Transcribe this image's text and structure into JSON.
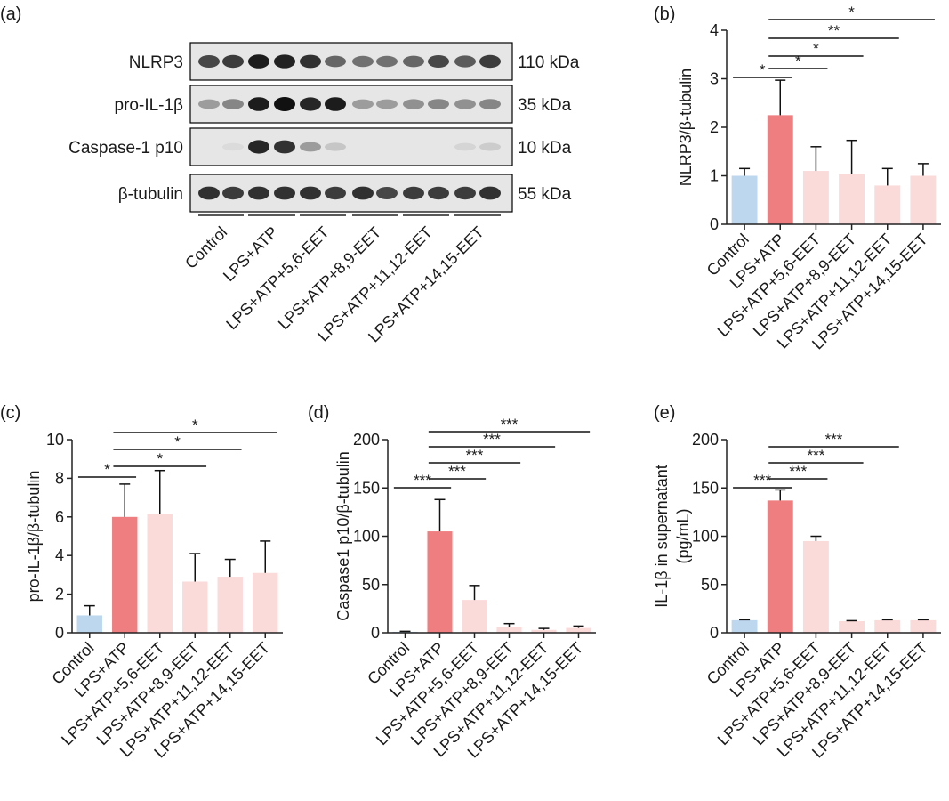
{
  "colors": {
    "control": "#bdd7ee",
    "lps_atp": "#ee7e80",
    "eet": "#fbdada",
    "axis": "#222222",
    "blot_band": "#111111",
    "blot_bg": "#e6e6e6"
  },
  "panel_a": {
    "label": "(a)",
    "rows": [
      {
        "name": "NLRP3",
        "kda": "110 kDa"
      },
      {
        "name": "pro-IL-1β",
        "kda": "35 kDa"
      },
      {
        "name": "Caspase-1 p10",
        "kda": "10 kDa"
      },
      {
        "name": "β-tubulin",
        "kda": "55 kDa"
      }
    ],
    "groups": [
      "Control",
      "LPS+ATP",
      "LPS+ATP+5,6-EET",
      "LPS+ATP+8,9-EET",
      "LPS+ATP+11,12-EET",
      "LPS+ATP+14,15-EET"
    ],
    "band_intensity": [
      [
        0.75,
        0.8,
        0.95,
        0.92,
        0.85,
        0.6,
        0.55,
        0.55,
        0.6,
        0.75,
        0.65,
        0.8
      ],
      [
        0.35,
        0.45,
        0.95,
        1.0,
        0.9,
        0.95,
        0.35,
        0.35,
        0.4,
        0.45,
        0.4,
        0.45
      ],
      [
        0.02,
        0.05,
        0.9,
        0.85,
        0.35,
        0.15,
        0.02,
        0.02,
        0.03,
        0.03,
        0.08,
        0.12
      ],
      [
        0.85,
        0.8,
        0.85,
        0.85,
        0.85,
        0.8,
        0.85,
        0.75,
        0.8,
        0.8,
        0.8,
        0.85
      ]
    ]
  },
  "chart_data": [
    {
      "panel": "(b)",
      "type": "bar",
      "categories": [
        "Control",
        "LPS+ATP",
        "LPS+ATP+5,6-EET",
        "LPS+ATP+8,9-EET",
        "LPS+ATP+11,12-EET",
        "LPS+ATP+14,15-EET"
      ],
      "values": [
        1.0,
        2.25,
        1.1,
        1.03,
        0.8,
        1.0
      ],
      "errors": [
        0.15,
        0.72,
        0.5,
        0.7,
        0.35,
        0.25
      ],
      "ylabel": "NLRP3/β-tubulin",
      "ylim": [
        0,
        4
      ],
      "yticks": [
        0,
        1,
        2,
        3,
        4
      ],
      "significance": [
        {
          "from": 0,
          "to": 1,
          "label": "*"
        },
        {
          "from": 1,
          "to": 2,
          "label": "*"
        },
        {
          "from": 1,
          "to": 3,
          "label": "*"
        },
        {
          "from": 1,
          "to": 4,
          "label": "**"
        },
        {
          "from": 1,
          "to": 5,
          "label": "*"
        }
      ]
    },
    {
      "panel": "(c)",
      "type": "bar",
      "categories": [
        "Control",
        "LPS+ATP",
        "LPS+ATP+5,6-EET",
        "LPS+ATP+8,9-EET",
        "LPS+ATP+11,12-EET",
        "LPS+ATP+14,15-EET"
      ],
      "values": [
        0.9,
        6.0,
        6.15,
        2.65,
        2.9,
        3.1
      ],
      "errors": [
        0.5,
        1.7,
        2.25,
        1.45,
        0.9,
        1.65
      ],
      "ylabel": "pro-IL-1β/β-tubulin",
      "ylim": [
        0,
        10
      ],
      "yticks": [
        0,
        2,
        4,
        6,
        8,
        10
      ],
      "significance": [
        {
          "from": 0,
          "to": 1,
          "label": "*"
        },
        {
          "from": 1,
          "to": 3,
          "label": "*"
        },
        {
          "from": 1,
          "to": 4,
          "label": "*"
        },
        {
          "from": 1,
          "to": 5,
          "label": "*"
        }
      ]
    },
    {
      "panel": "(d)",
      "type": "bar",
      "categories": [
        "Control",
        "LPS+ATP",
        "LPS+ATP+5,6-EET",
        "LPS+ATP+8,9-EET",
        "LPS+ATP+11,12-EET",
        "LPS+ATP+14,15-EET"
      ],
      "values": [
        1.0,
        105,
        34,
        6,
        3,
        5
      ],
      "errors": [
        0.5,
        33,
        15,
        3.5,
        1.5,
        2
      ],
      "ylabel": "Caspase1 p10/β-tubulin",
      "ylim": [
        0,
        200
      ],
      "yticks": [
        0,
        50,
        100,
        150,
        200
      ],
      "significance": [
        {
          "from": 0,
          "to": 1,
          "label": "***"
        },
        {
          "from": 1,
          "to": 2,
          "label": "***"
        },
        {
          "from": 1,
          "to": 3,
          "label": "***"
        },
        {
          "from": 1,
          "to": 4,
          "label": "***"
        },
        {
          "from": 1,
          "to": 5,
          "label": "***"
        }
      ]
    },
    {
      "panel": "(e)",
      "type": "bar",
      "categories": [
        "Control",
        "LPS+ATP",
        "LPS+ATP+5,6-EET",
        "LPS+ATP+8,9-EET",
        "LPS+ATP+11,12-EET",
        "LPS+ATP+14,15-EET"
      ],
      "values": [
        13,
        137,
        95,
        12,
        13,
        13
      ],
      "errors": [
        0.5,
        11,
        5,
        0.5,
        0.5,
        0.5
      ],
      "ylabel": "IL-1β in supernatant",
      "ylabel2": "(pg/mL)",
      "ylim": [
        0,
        200
      ],
      "yticks": [
        0,
        50,
        100,
        150,
        200
      ],
      "significance": [
        {
          "from": 0,
          "to": 1,
          "label": "***"
        },
        {
          "from": 1,
          "to": 2,
          "label": "***"
        },
        {
          "from": 1,
          "to": 3,
          "label": "***"
        },
        {
          "from": 1,
          "to": 4,
          "label": "***"
        }
      ]
    }
  ]
}
